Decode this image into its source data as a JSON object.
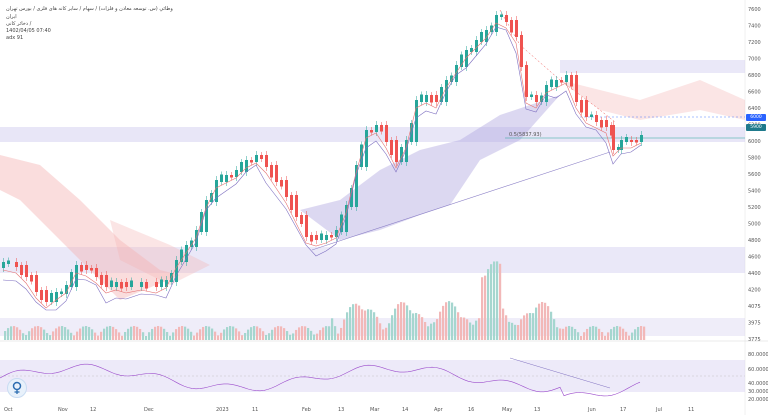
{
  "header": {
    "symbol_line": "وطائي (س. توسعه معادن و فلزات) / سهام / سایر کانه های فلزی / بورس تهران",
    "sub_line": "ایران",
    "sub_line2": "ذخائر کانی / ",
    "timestamp": "1402/04/05 07:40",
    "indicator": "adx 91"
  },
  "price_axis": {
    "labels": [
      "7600",
      "7400",
      "7200",
      "7000",
      "6800",
      "6600",
      "6400",
      "6200",
      "6000",
      "5800",
      "5600",
      "5400",
      "5200",
      "5000",
      "4800",
      "4600",
      "4400",
      "4200",
      "4075",
      "3975",
      "3775"
    ]
  },
  "price_tags": [
    {
      "name": "last-price",
      "text": "6000",
      "color": "#2962ff"
    },
    {
      "name": "current",
      "text": "5900",
      "color": "#1f7a8c"
    }
  ],
  "fib_label": "0.5(5837.93)",
  "time_axis": {
    "labels": [
      "Oct",
      "Nov",
      "12",
      "Dec",
      "2023",
      "11",
      "Feb",
      "13",
      "Mar",
      "14",
      "Apr",
      "16",
      "May",
      "13",
      "Jun",
      "17",
      "Jul",
      "11"
    ]
  },
  "rsi_axis": {
    "labels": [
      "80.0000",
      "60.0000",
      "40.0000",
      "30.0000",
      "20.0000"
    ]
  },
  "colors": {
    "up": "#26a69a",
    "down": "#ef5350",
    "cloud_up": "#b2a8e0",
    "cloud_down": "#f4b4b4",
    "band": "#d6d1f1"
  }
}
